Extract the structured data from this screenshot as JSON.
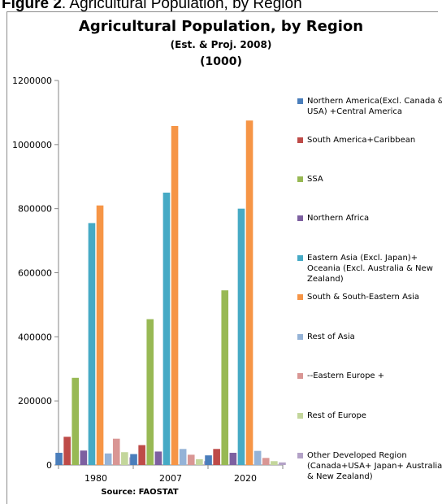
{
  "caption": {
    "prefix": "Figure 2",
    "text": ". Agricultural Population, by Region"
  },
  "chart_data": {
    "type": "bar",
    "title": "Agricultural Population, by Region",
    "subtitle": "(Est. & Proj. 2008)",
    "unit_note": "(1000)",
    "source": "Source: FAOSTAT",
    "categories": [
      "1980",
      "2007",
      "2020"
    ],
    "ylim": [
      0,
      1200000
    ],
    "yticks": [
      0,
      200000,
      400000,
      600000,
      800000,
      1000000,
      1200000
    ],
    "ytick_labels": [
      "0",
      "200000",
      "400000",
      "600000",
      "800000",
      "1000000",
      "1200000"
    ],
    "grid": false,
    "legend_position": "right",
    "series": [
      {
        "name": "Northern America(Excl. Canada & USA) +Central America",
        "color": "#4a7ebb",
        "values": [
          38000,
          34000,
          30000
        ]
      },
      {
        "name": "South America+Caribbean",
        "color": "#be4b48",
        "values": [
          88000,
          62000,
          50000
        ]
      },
      {
        "name": "SSA",
        "color": "#98b954",
        "values": [
          272000,
          455000,
          545000
        ]
      },
      {
        "name": "Northern Africa",
        "color": "#7d60a0",
        "values": [
          45000,
          42000,
          38000
        ]
      },
      {
        "name": "Eastern Asia (Excl. Japan)+ Oceania (Excl. Australia & New Zealand)",
        "color": "#46aac5",
        "values": [
          755000,
          850000,
          800000
        ]
      },
      {
        "name": "South & South-Eastern Asia",
        "color": "#f69546",
        "values": [
          810000,
          1058000,
          1075000
        ]
      },
      {
        "name": "Rest of Asia",
        "color": "#95b3d7",
        "values": [
          36000,
          50000,
          44000
        ]
      },
      {
        "name": "--Eastern Europe +",
        "color": "#d99694",
        "values": [
          82000,
          32000,
          22000
        ]
      },
      {
        "name": "Rest of Europe",
        "color": "#c3d69b",
        "values": [
          40000,
          18000,
          12000
        ]
      },
      {
        "name": "Other Developed Region (Canada+USA+ Japan+ Australia & New Zealand)",
        "color": "#b3a2c7",
        "values": [
          24000,
          12000,
          8000
        ]
      }
    ]
  }
}
